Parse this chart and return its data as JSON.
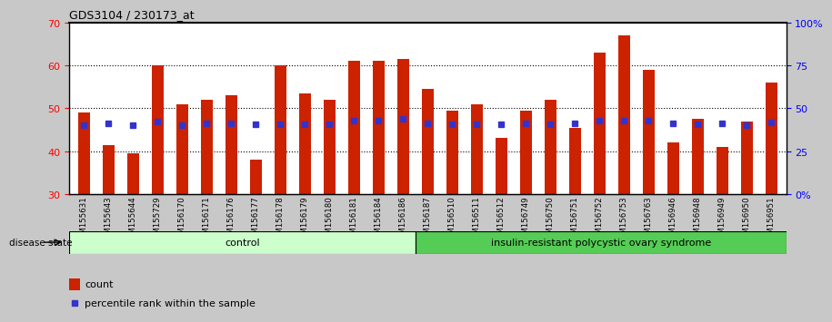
{
  "title": "GDS3104 / 230173_at",
  "samples": [
    "GSM155631",
    "GSM155643",
    "GSM155644",
    "GSM155729",
    "GSM156170",
    "GSM156171",
    "GSM156176",
    "GSM156177",
    "GSM156178",
    "GSM156179",
    "GSM156180",
    "GSM156181",
    "GSM156184",
    "GSM156186",
    "GSM156187",
    "GSM156510",
    "GSM156511",
    "GSM156512",
    "GSM156749",
    "GSM156750",
    "GSM156751",
    "GSM156752",
    "GSM156753",
    "GSM156763",
    "GSM156946",
    "GSM156948",
    "GSM156949",
    "GSM156950",
    "GSM156951"
  ],
  "bar_values": [
    49,
    41.5,
    39.5,
    60,
    51,
    52,
    53,
    38,
    60,
    53.5,
    52,
    61,
    61,
    61.5,
    54.5,
    49.5,
    51,
    43,
    49.5,
    52,
    45.5,
    63,
    67,
    59,
    42,
    47.5,
    41,
    47,
    56
  ],
  "percentile_values": [
    40,
    41,
    40,
    42,
    40,
    41,
    41,
    40.5,
    40.5,
    40.5,
    40.5,
    43,
    43,
    44,
    41,
    40.5,
    40.5,
    40.5,
    41,
    40.5,
    41,
    43,
    43,
    43,
    41,
    40.5,
    41,
    40,
    41.5
  ],
  "control_count": 14,
  "disease_label": "insulin-resistant polycystic ovary syndrome",
  "control_label": "control",
  "disease_state_label": "disease state",
  "ylim_left": [
    30,
    70
  ],
  "ylim_right": [
    0,
    100
  ],
  "yticks_left": [
    30,
    40,
    50,
    60,
    70
  ],
  "yticks_right": [
    0,
    25,
    50,
    75,
    100
  ],
  "ytick_labels_right": [
    "0%",
    "25",
    "50",
    "75",
    "100%"
  ],
  "bar_color": "#cc2200",
  "percentile_color": "#3333cc",
  "control_bg": "#ccffcc",
  "disease_bg": "#55cc55",
  "bar_width": 0.5
}
